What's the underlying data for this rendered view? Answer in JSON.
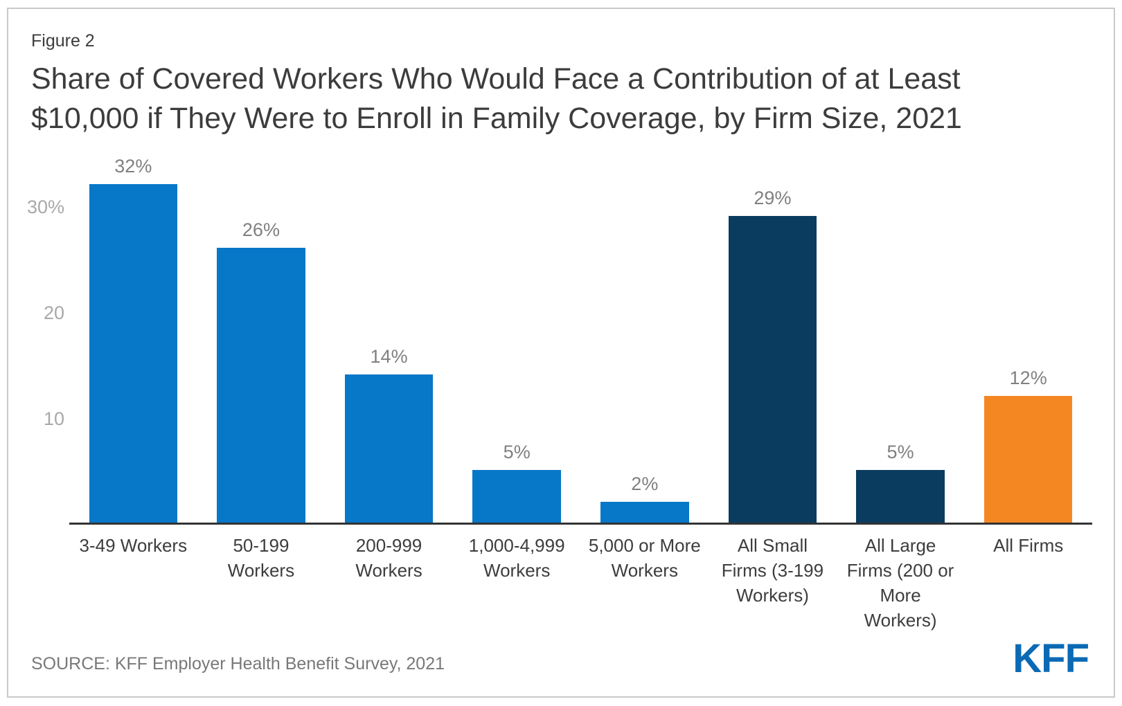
{
  "figure": {
    "label": "Figure 2",
    "title": "Share of Covered Workers Who Would Face a Contribution of at Least\n$10,000 if They Were to Enroll in Family Coverage, by Firm Size, 2021"
  },
  "chart_data": {
    "type": "bar",
    "categories": [
      "3-49 Workers",
      "50-199\nWorkers",
      "200-999\nWorkers",
      "1,000-4,999\nWorkers",
      "5,000 or More\nWorkers",
      "All Small\nFirms (3-199\nWorkers)",
      "All Large\nFirms (200 or\nMore\nWorkers)",
      "All Firms"
    ],
    "values": [
      32,
      26,
      14,
      5,
      2,
      29,
      5,
      12
    ],
    "value_labels": [
      "32%",
      "26%",
      "14%",
      "5%",
      "2%",
      "29%",
      "5%",
      "12%"
    ],
    "bar_color_keys": [
      "blue",
      "blue",
      "blue",
      "blue",
      "blue",
      "navy",
      "navy",
      "orange"
    ],
    "palette": {
      "blue": "#0777c8",
      "navy": "#0a3c5f",
      "orange": "#f58723"
    },
    "title": "Share of Covered Workers Who Would Face a Contribution of at Least $10,000 if They Were to Enroll in Family Coverage, by Firm Size, 2021",
    "xlabel": "",
    "ylabel": "",
    "ylim": [
      0,
      33
    ],
    "yticks": [
      {
        "label": "30%",
        "value": 30
      },
      {
        "label": "20",
        "value": 20
      },
      {
        "label": "10",
        "value": 10
      }
    ],
    "grid": false,
    "legend": false,
    "axis_line_color": "#333333",
    "tick_label_color": "#a8a8a8",
    "value_label_color": "#808080"
  },
  "footer": {
    "source": "SOURCE: KFF Employer Health Benefit Survey, 2021",
    "logo": "KFF"
  }
}
